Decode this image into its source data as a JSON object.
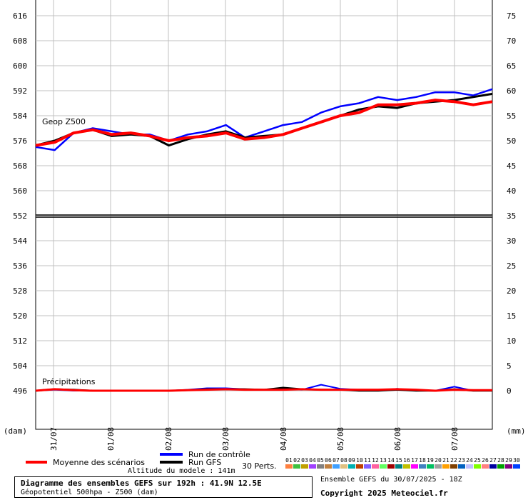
{
  "panels": {
    "upper_label": "Geop Z500",
    "lower_label": "Précipitations",
    "left_unit": "(dam)",
    "right_unit": "(mm)"
  },
  "legend": {
    "mean": "Moyenne des scénarios",
    "control": "Run de contrôle",
    "gfs": "Run GFS",
    "perts_label": "30 Perts.",
    "pert_numbers": [
      "01",
      "02",
      "03",
      "04",
      "05",
      "06",
      "07",
      "08",
      "09",
      "10",
      "11",
      "12",
      "13",
      "14",
      "15",
      "16",
      "17",
      "18",
      "19",
      "20",
      "21",
      "22",
      "23",
      "24",
      "25",
      "26",
      "27",
      "28",
      "29",
      "30"
    ],
    "pert_colors": [
      "#ff8040",
      "#40c040",
      "#c0a000",
      "#a040ff",
      "#808080",
      "#c08040",
      "#40a0ff",
      "#e0c080",
      "#00b0b0",
      "#c04000",
      "#8060ff",
      "#ff60a0",
      "#60ff60",
      "#a00000",
      "#008080",
      "#c0c000",
      "#ff00ff",
      "#4080c0",
      "#00c060",
      "#a0a0a0",
      "#ffa000",
      "#804000",
      "#0060c0",
      "#c0c0ff",
      "#80ff00",
      "#ff8080",
      "#0000a0",
      "#00a000",
      "#800080",
      "#0040ff"
    ],
    "colors": {
      "mean": "#ff0000",
      "control": "#0000ff",
      "gfs": "#000000"
    }
  },
  "footer": {
    "altitude": "Altitude du modele : 141m",
    "title": "Diagramme des ensembles GEFS sur 192h : 41.9N 12.5E",
    "subtitle": "Géopotentiel 500hpa - Z500 (dam)",
    "run": "Ensemble GEFS du 30/07/2025 - 18Z",
    "copyright": "Copyright 2025 Meteociel.fr"
  },
  "chart_data": {
    "type": "line",
    "x_labels": [
      "31/07",
      "01/08",
      "02/08",
      "03/08",
      "04/08",
      "05/08",
      "06/08",
      "07/08"
    ],
    "left_axis": {
      "label": "(dam)",
      "ticks": [
        616,
        608,
        600,
        592,
        584,
        576,
        568,
        560,
        552,
        544,
        536,
        528,
        520,
        512,
        504,
        496
      ]
    },
    "right_axis": {
      "label": "(mm)",
      "ticks": [
        75,
        70,
        65,
        60,
        55,
        50,
        45,
        40,
        35,
        30,
        25,
        20,
        15,
        10,
        5,
        0
      ]
    },
    "z500": {
      "mean": [
        574.5,
        575.5,
        578.5,
        579.5,
        578,
        578.5,
        577.5,
        576,
        577,
        577.5,
        578.5,
        576.5,
        577,
        578,
        580,
        582,
        584,
        585,
        587.5,
        587.5,
        588,
        589,
        588.5,
        587.5,
        588.5
      ],
      "control": [
        574,
        573,
        578.5,
        580,
        579,
        578,
        578,
        576,
        578,
        579,
        581,
        577,
        579,
        581,
        582,
        585,
        587,
        588,
        590,
        589,
        590,
        591.5,
        591.5,
        590.5,
        592.5
      ],
      "gfs": [
        574.5,
        576,
        578.5,
        579.5,
        577.5,
        578,
        577.5,
        574.5,
        576.5,
        578,
        579,
        577,
        577.5,
        578,
        580,
        582,
        584,
        586,
        587,
        586.5,
        588,
        588.5,
        589,
        590,
        591
      ]
    },
    "precip_mm": {
      "mean": [
        0,
        0.3,
        0.1,
        0,
        0,
        0,
        0,
        0,
        0.1,
        0.2,
        0.3,
        0.2,
        0.2,
        0.2,
        0.3,
        0.2,
        0.2,
        0.2,
        0.2,
        0.3,
        0.2,
        0,
        0.2,
        0.1,
        0.1
      ],
      "control": [
        0,
        0.2,
        0,
        0,
        0,
        0,
        0,
        0,
        0.2,
        0.5,
        0.5,
        0.3,
        0.2,
        0.3,
        0.2,
        1.2,
        0.4,
        0.2,
        0,
        0.4,
        0,
        0,
        0.8,
        0,
        0
      ],
      "gfs": [
        0,
        0.3,
        0.2,
        0,
        0,
        0,
        0,
        0,
        0.1,
        0.3,
        0.3,
        0.3,
        0.2,
        0.6,
        0.3,
        0.2,
        0.2,
        0,
        0,
        0.2,
        0,
        0,
        0.3,
        0,
        0
      ]
    }
  }
}
